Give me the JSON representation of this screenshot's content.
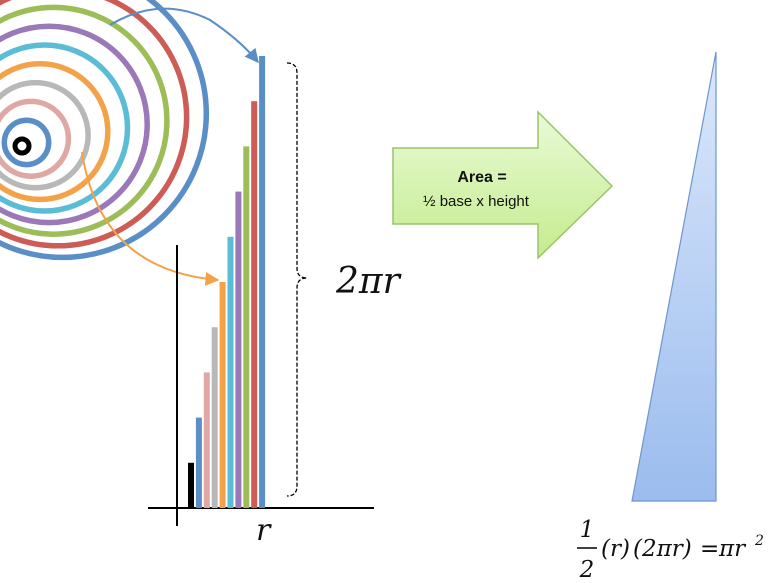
{
  "label_height": "2πr",
  "label_base": "r",
  "arrow": {
    "title": "Area =",
    "subtitle": "½ base x height",
    "fill_top": "#e9fad6",
    "fill_bottom": "#c4ec8e",
    "stroke": "#9bc36a"
  },
  "formula": {
    "numerator": "1",
    "denominator": "2",
    "factor_r": "(r)",
    "factor_circ": "(2πr)",
    "equals": "=",
    "result": "πr",
    "exponent": "2"
  },
  "ring_colors": [
    "#000000",
    "#5a8ec6",
    "#e0a8a4",
    "#b8b8b8",
    "#f4a24a",
    "#5bbcd6",
    "#9b78b8",
    "#9cbd58",
    "#cc5c55",
    "#5a8ec6"
  ],
  "triangle": {
    "fill_top": "#dbe8fb",
    "fill_bottom": "#9bbcee",
    "stroke": "#6f95cf"
  },
  "connector_colors": {
    "top": "#5a8ec6",
    "bottom": "#f4a24a"
  }
}
